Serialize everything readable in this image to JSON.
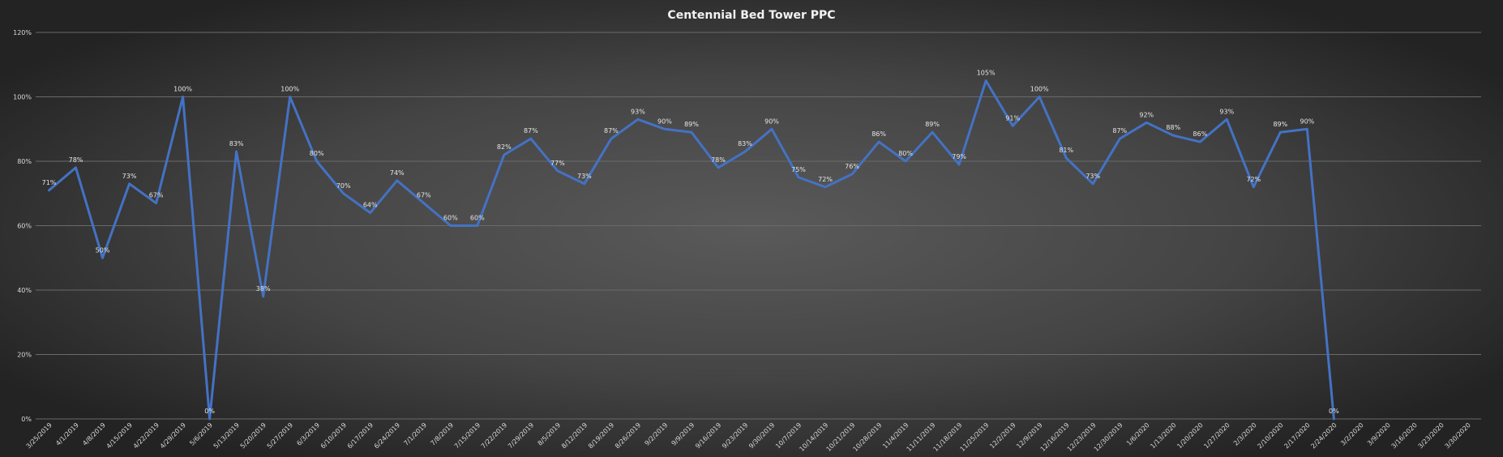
{
  "chart_data": {
    "type": "line",
    "title": "Centennial Bed Tower PPC",
    "ylim": [
      0,
      1.2
    ],
    "y_ticks": [
      0,
      0.2,
      0.4,
      0.6,
      0.8,
      1.0,
      1.2
    ],
    "y_tick_labels": [
      "0%",
      "20%",
      "40%",
      "60%",
      "80%",
      "100%",
      "120%"
    ],
    "grid": "horizontal",
    "series_color": "#4472c4",
    "categories": [
      "3/25/2019",
      "4/1/2019",
      "4/8/2019",
      "4/15/2019",
      "4/22/2019",
      "4/29/2019",
      "5/6/2019",
      "5/13/2019",
      "5/20/2019",
      "5/27/2019",
      "6/3/2019",
      "6/10/2019",
      "6/17/2019",
      "6/24/2019",
      "7/1/2019",
      "7/8/2019",
      "7/15/2019",
      "7/22/2019",
      "7/29/2019",
      "8/5/2019",
      "8/12/2019",
      "8/19/2019",
      "8/26/2019",
      "9/2/2019",
      "9/9/2019",
      "9/16/2019",
      "9/23/2019",
      "9/30/2019",
      "10/7/2019",
      "10/14/2019",
      "10/21/2019",
      "10/28/2019",
      "11/4/2019",
      "11/11/2019",
      "11/18/2019",
      "11/25/2019",
      "12/2/2019",
      "12/9/2019",
      "12/16/2019",
      "12/23/2019",
      "12/30/2019",
      "1/6/2020",
      "1/13/2020",
      "1/20/2020",
      "1/27/2020",
      "2/3/2020",
      "2/10/2020",
      "2/17/2020",
      "2/24/2020",
      "3/2/2020",
      "3/9/2020",
      "3/16/2020",
      "3/23/2020",
      "3/30/2020"
    ],
    "values": [
      0.71,
      0.78,
      0.5,
      0.73,
      0.67,
      1.0,
      0.0,
      0.83,
      0.38,
      1.0,
      0.8,
      0.7,
      0.64,
      0.74,
      0.67,
      0.6,
      0.6,
      0.82,
      0.87,
      0.77,
      0.73,
      0.87,
      0.93,
      0.9,
      0.89,
      0.78,
      0.83,
      0.9,
      0.75,
      0.72,
      0.76,
      0.86,
      0.8,
      0.89,
      0.79,
      1.05,
      0.91,
      1.0,
      0.81,
      0.73,
      0.87,
      0.92,
      0.88,
      0.86,
      0.93,
      0.72,
      0.89,
      0.9,
      0.0,
      null,
      null,
      null,
      null,
      null
    ],
    "data_labels": [
      "71%",
      "78%",
      "50%",
      "73%",
      "67%",
      "100%",
      "0%",
      "83%",
      "38%",
      "100%",
      "80%",
      "70%",
      "64%",
      "74%",
      "67%",
      "60%",
      "60%",
      "82%",
      "87%",
      "77%",
      "73%",
      "87%",
      "93%",
      "90%",
      "89%",
      "78%",
      "83%",
      "90%",
      "75%",
      "72%",
      "76%",
      "86%",
      "80%",
      "89%",
      "79%",
      "105%",
      "91%",
      "100%",
      "81%",
      "73%",
      "87%",
      "92%",
      "88%",
      "86%",
      "93%",
      "72%",
      "89%",
      "90%",
      "0%",
      null,
      null,
      null,
      null,
      null
    ]
  }
}
